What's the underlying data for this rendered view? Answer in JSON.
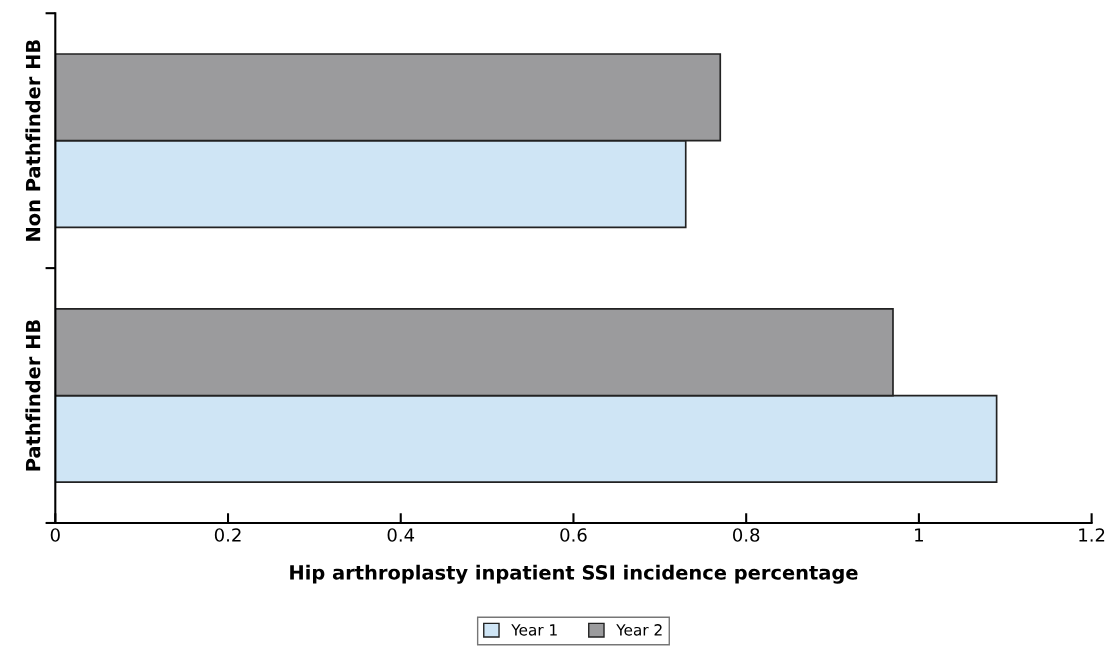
{
  "chart_data": {
    "type": "bar",
    "orientation": "horizontal",
    "xlabel": "Hip arthroplasty inpatient SSI incidence percentage",
    "categories": [
      "Non Pathfinder HB",
      "Pathfinder HB"
    ],
    "series": [
      {
        "name": "Year 1",
        "color": "#cfe5f5",
        "values": [
          0.73,
          1.09
        ]
      },
      {
        "name": "Year 2",
        "color": "#9b9b9d",
        "values": [
          0.77,
          0.97
        ]
      }
    ],
    "xlim": [
      0,
      1.2
    ],
    "xticks": [
      0,
      0.2,
      0.4,
      0.6,
      0.8,
      1,
      1.2
    ],
    "grid": false,
    "legend": "bottom"
  }
}
